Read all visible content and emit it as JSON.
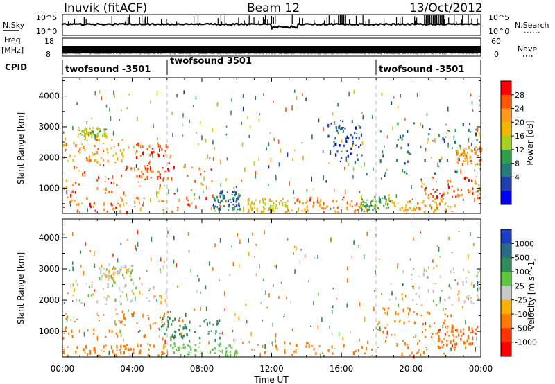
{
  "header": {
    "station": "Inuvik (fitACF)",
    "beam": "Beam 12",
    "date": "13/Oct/2012"
  },
  "strip_labels": {
    "nsky": "N.Sky",
    "nsky_ticks": [
      "10^5",
      "10^0"
    ],
    "freq_top": "Freq.",
    "freq_unit": "[MHz]",
    "freq_ticks": [
      "18",
      "8"
    ],
    "cpid": "CPID",
    "nsearch": "N.Search",
    "nsearch_ticks": [
      "10^5",
      "10^0"
    ],
    "nave": "Nave",
    "nave_ticks": [
      "60",
      "0"
    ]
  },
  "cpid_segments": [
    {
      "label": "twofsound -3501",
      "start_hour": 0
    },
    {
      "label": "twofsound 3501",
      "start_hour": 6
    },
    {
      "label": "twofsound -3501",
      "start_hour": 18
    }
  ],
  "chart_data": [
    {
      "type": "heatmap",
      "panel": "power",
      "xlabel": "",
      "ylabel": "Slant Range [km]",
      "xlim": [
        0,
        24
      ],
      "ylim": [
        180,
        4600
      ],
      "x_tick_labels": [
        "00:00",
        "04:00",
        "08:00",
        "12:00",
        "16:00",
        "20:00",
        "00:00"
      ],
      "y_ticks": [
        1000,
        2000,
        3000,
        4000
      ],
      "colorbar": {
        "label": "Power [dB]",
        "ticks": [
          "28",
          "24",
          "20",
          "16",
          "12",
          "8",
          "4"
        ],
        "colors": [
          "#ff0000",
          "#ff5500",
          "#ff9a1e",
          "#f2b800",
          "#a8d020",
          "#2e9e4a",
          "#287a7a",
          "#2040b0",
          "#0000ff"
        ]
      },
      "regions": [
        {
          "t0": 0.0,
          "t1": 8.6,
          "r0": 800,
          "r1": 1750,
          "value": 26
        },
        {
          "t0": 0.0,
          "t1": 3.5,
          "r0": 1850,
          "r1": 2650,
          "value": 22
        },
        {
          "t0": 4.2,
          "t1": 6.2,
          "r0": 1300,
          "r1": 2500,
          "value": 27
        },
        {
          "t0": 0.8,
          "t1": 2.5,
          "r0": 2700,
          "r1": 3000,
          "value": 18
        },
        {
          "t0": 0.0,
          "t1": 9.5,
          "r0": 250,
          "r1": 750,
          "value": 25
        },
        {
          "t0": 8.6,
          "t1": 10.2,
          "r0": 300,
          "r1": 950,
          "value": 8
        },
        {
          "t0": 10.3,
          "t1": 13.0,
          "r0": 250,
          "r1": 700,
          "value": 20
        },
        {
          "t0": 13.0,
          "t1": 17.8,
          "r0": 250,
          "r1": 750,
          "value": 24
        },
        {
          "t0": 17.0,
          "t1": 18.8,
          "r0": 300,
          "r1": 800,
          "value": 14
        },
        {
          "t0": 18.8,
          "t1": 22.5,
          "r0": 250,
          "r1": 700,
          "value": 22
        },
        {
          "t0": 20.5,
          "t1": 24.0,
          "r0": 700,
          "r1": 1400,
          "value": 26
        },
        {
          "t0": 15.2,
          "t1": 17.2,
          "r0": 1800,
          "r1": 3300,
          "value": 6
        },
        {
          "t0": 18.2,
          "t1": 24.0,
          "r0": 1400,
          "r1": 3200,
          "value": 9
        },
        {
          "t0": 22.5,
          "t1": 24.0,
          "r0": 1800,
          "r1": 2400,
          "value": 22
        }
      ]
    },
    {
      "type": "heatmap",
      "panel": "velocity",
      "xlabel": "Time UT",
      "ylabel": "Slant Range [km]",
      "xlim": [
        0,
        24
      ],
      "ylim": [
        180,
        4600
      ],
      "x_tick_labels": [
        "00:00",
        "04:00",
        "08:00",
        "12:00",
        "16:00",
        "20:00",
        "00:00"
      ],
      "y_ticks": [
        1000,
        2000,
        3000,
        4000
      ],
      "colorbar": {
        "label": "Velocity [m s^-1]",
        "ticks": [
          "1000",
          "500",
          "100",
          "25",
          "-25",
          "-100",
          "-500",
          "-1000"
        ],
        "colors": [
          "#1a3ec0",
          "#2a6a8a",
          "#2e8a5a",
          "#5cc63c",
          "#c8c8c8",
          "#ffb000",
          "#ff7a00",
          "#ff3300",
          "#ff0000"
        ]
      },
      "regions": [
        {
          "t0": 0.0,
          "t1": 7.0,
          "r0": 800,
          "r1": 1700,
          "value": -300
        },
        {
          "t0": 0.5,
          "t1": 6.0,
          "r0": 1900,
          "r1": 2600,
          "value": 0
        },
        {
          "t0": 2.0,
          "t1": 4.0,
          "r0": 2700,
          "r1": 3200,
          "value": 0
        },
        {
          "t0": 5.5,
          "t1": 9.0,
          "r0": 700,
          "r1": 1500,
          "value": 200
        },
        {
          "t0": 6.0,
          "t1": 10.0,
          "r0": 250,
          "r1": 650,
          "value": 60
        },
        {
          "t0": 0.0,
          "t1": 6.0,
          "r0": 250,
          "r1": 600,
          "value": -150
        },
        {
          "t0": 10.5,
          "t1": 22.5,
          "r0": 250,
          "r1": 700,
          "value": -300
        },
        {
          "t0": 18.0,
          "t1": 22.5,
          "r0": 700,
          "r1": 1800,
          "value": -250
        },
        {
          "t0": 18.5,
          "t1": 24.0,
          "r0": 1800,
          "r1": 3200,
          "value": 0
        },
        {
          "t0": 21.5,
          "t1": 24.0,
          "r0": 500,
          "r1": 1200,
          "value": -400
        }
      ]
    }
  ],
  "time_series": {
    "nsky_level": 0.7,
    "freq_level": 0.7
  }
}
